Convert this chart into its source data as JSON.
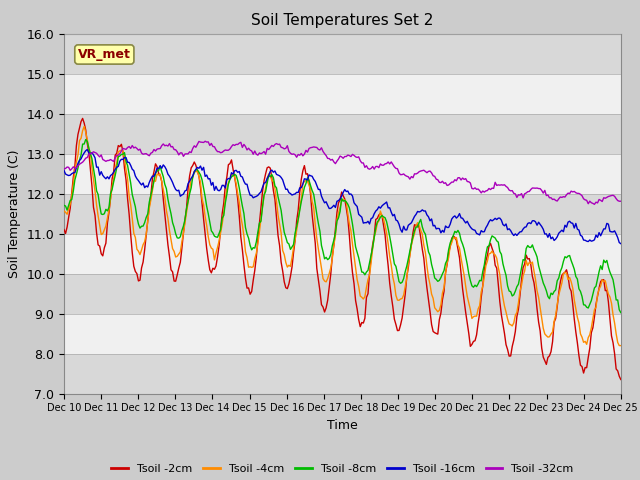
{
  "title": "Soil Temperatures Set 2",
  "xlabel": "Time",
  "ylabel": "Soil Temperature (C)",
  "ylim": [
    7.0,
    16.0
  ],
  "yticks": [
    7.0,
    8.0,
    9.0,
    10.0,
    11.0,
    12.0,
    13.0,
    14.0,
    15.0,
    16.0
  ],
  "xtick_labels": [
    "Dec 10",
    "Dec 11",
    "Dec 12",
    "Dec 13",
    "Dec 14",
    "Dec 15",
    "Dec 16",
    "Dec 17",
    "Dec 18",
    "Dec 19",
    "Dec 20",
    "Dec 21",
    "Dec 22",
    "Dec 23",
    "Dec 24",
    "Dec 25"
  ],
  "colors": {
    "Tsoil -2cm": "#cc0000",
    "Tsoil -4cm": "#ff8c00",
    "Tsoil -8cm": "#00bb00",
    "Tsoil -16cm": "#0000cc",
    "Tsoil -32cm": "#aa00bb"
  },
  "fig_bg": "#cccccc",
  "plot_bg": "#e8e8e8",
  "band_light": "#f0f0f0",
  "band_dark": "#d8d8d8",
  "label_box_color": "#ffffaa",
  "label_box_text": "VR_met",
  "legend_labels": [
    "Tsoil -2cm",
    "Tsoil -4cm",
    "Tsoil -8cm",
    "Tsoil -16cm",
    "Tsoil -32cm"
  ]
}
